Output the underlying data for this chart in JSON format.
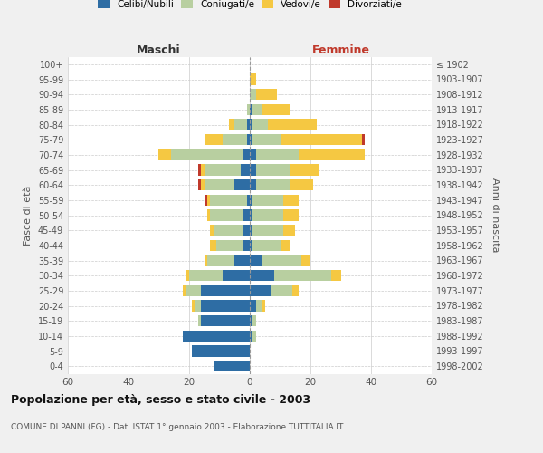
{
  "age_groups": [
    "0-4",
    "5-9",
    "10-14",
    "15-19",
    "20-24",
    "25-29",
    "30-34",
    "35-39",
    "40-44",
    "45-49",
    "50-54",
    "55-59",
    "60-64",
    "65-69",
    "70-74",
    "75-79",
    "80-84",
    "85-89",
    "90-94",
    "95-99",
    "100+"
  ],
  "birth_years": [
    "1998-2002",
    "1993-1997",
    "1988-1992",
    "1983-1987",
    "1978-1982",
    "1973-1977",
    "1968-1972",
    "1963-1967",
    "1958-1962",
    "1953-1957",
    "1948-1952",
    "1943-1947",
    "1938-1942",
    "1933-1937",
    "1928-1932",
    "1923-1927",
    "1918-1922",
    "1913-1917",
    "1908-1912",
    "1903-1907",
    "≤ 1902"
  ],
  "maschi": {
    "celibi": [
      12,
      19,
      22,
      16,
      16,
      16,
      9,
      5,
      2,
      2,
      2,
      1,
      5,
      3,
      2,
      1,
      1,
      0,
      0,
      0,
      0
    ],
    "coniugati": [
      0,
      0,
      0,
      1,
      2,
      5,
      11,
      9,
      9,
      10,
      11,
      12,
      10,
      12,
      24,
      8,
      4,
      1,
      0,
      0,
      0
    ],
    "vedovi": [
      0,
      0,
      0,
      0,
      1,
      1,
      1,
      1,
      2,
      1,
      1,
      1,
      1,
      1,
      4,
      6,
      2,
      0,
      0,
      0,
      0
    ],
    "divorziati": [
      0,
      0,
      0,
      0,
      0,
      0,
      0,
      0,
      0,
      0,
      0,
      1,
      1,
      1,
      0,
      0,
      0,
      0,
      0,
      0,
      0
    ]
  },
  "femmine": {
    "nubili": [
      0,
      0,
      1,
      1,
      2,
      7,
      8,
      4,
      1,
      1,
      1,
      1,
      2,
      2,
      2,
      1,
      1,
      1,
      0,
      0,
      0
    ],
    "coniugate": [
      0,
      0,
      1,
      1,
      2,
      7,
      19,
      13,
      9,
      10,
      10,
      10,
      11,
      11,
      14,
      9,
      5,
      3,
      2,
      0,
      0
    ],
    "vedove": [
      0,
      0,
      0,
      0,
      1,
      2,
      3,
      3,
      3,
      4,
      5,
      5,
      8,
      10,
      22,
      27,
      16,
      9,
      7,
      2,
      0
    ],
    "divorziate": [
      0,
      0,
      0,
      0,
      0,
      0,
      0,
      0,
      0,
      0,
      0,
      0,
      0,
      0,
      0,
      1,
      0,
      0,
      0,
      0,
      0
    ]
  },
  "colors": {
    "celibi_nubili": "#2E6DA4",
    "coniugati": "#B8CFA0",
    "vedovi": "#F5C842",
    "divorziati": "#C0392B"
  },
  "xlim": 60,
  "title": "Popolazione per età, sesso e stato civile - 2003",
  "subtitle": "COMUNE DI PANNI (FG) - Dati ISTAT 1° gennaio 2003 - Elaborazione TUTTITALIA.IT",
  "ylabel_left": "Fasce di età",
  "ylabel_right": "Anni di nascita",
  "xlabel_left": "Maschi",
  "xlabel_right": "Femmine",
  "bg_color": "#f0f0f0",
  "plot_bg_color": "#ffffff"
}
